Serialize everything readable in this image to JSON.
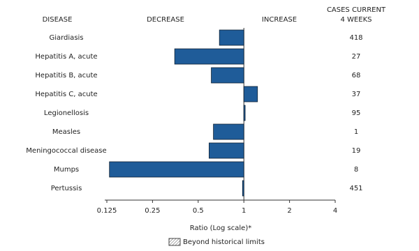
{
  "chart_data": {
    "type": "bar",
    "orientation": "horizontal",
    "xscale": "log",
    "headers": {
      "disease": "DISEASE",
      "decrease": "DECREASE",
      "increase": "INCREASE",
      "cases": [
        "CASES CURRENT",
        "4 WEEKS"
      ]
    },
    "categories": [
      "Giardiasis",
      "Hepatitis A, acute",
      "Hepatitis B, acute",
      "Hepatitis C, acute",
      "Legionellosis",
      "Measles",
      "Meningococcal disease",
      "Mumps",
      "Pertussis"
    ],
    "values": [
      0.69,
      0.35,
      0.61,
      1.23,
      1.02,
      0.63,
      0.59,
      0.13,
      0.98
    ],
    "cases": [
      418,
      27,
      68,
      37,
      95,
      1,
      19,
      8,
      451
    ],
    "color": "#1f5c99",
    "baseline": 1,
    "xlim": [
      0.125,
      4
    ],
    "xticks": [
      0.125,
      0.25,
      0.5,
      1,
      2,
      4
    ],
    "xlabel": "Ratio (Log scale)*",
    "legend": "Beyond historical limits"
  }
}
